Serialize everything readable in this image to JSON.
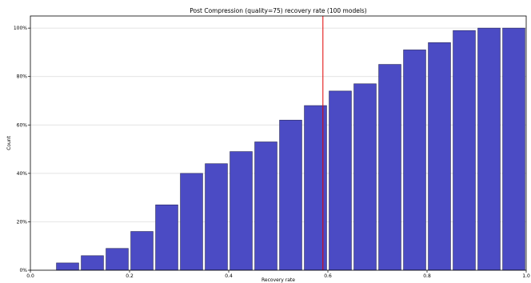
{
  "chart_data": {
    "type": "bar",
    "title": "Post Compression (quality=75) recovery rate (100 models)",
    "xlabel": "Recovery rate",
    "ylabel": "Count",
    "xlim": [
      0.0,
      1.0
    ],
    "ylim": [
      0,
      105
    ],
    "x_ticks": [
      0.0,
      0.2,
      0.4,
      0.6,
      0.8,
      1.0
    ],
    "x_tick_labels": [
      "0.0",
      "0.2",
      "0.4",
      "0.6",
      "0.8",
      "1.0"
    ],
    "y_ticks": [
      0,
      20,
      40,
      60,
      80,
      100
    ],
    "y_tick_labels": [
      "0%",
      "20%",
      "40%",
      "60%",
      "80%",
      "100%"
    ],
    "grid": "horizontal",
    "bar_width": 0.045,
    "bins": [
      {
        "x": 0.075,
        "value": 3
      },
      {
        "x": 0.125,
        "value": 6
      },
      {
        "x": 0.175,
        "value": 9
      },
      {
        "x": 0.225,
        "value": 16
      },
      {
        "x": 0.275,
        "value": 27
      },
      {
        "x": 0.325,
        "value": 40
      },
      {
        "x": 0.375,
        "value": 44
      },
      {
        "x": 0.425,
        "value": 49
      },
      {
        "x": 0.475,
        "value": 53
      },
      {
        "x": 0.525,
        "value": 62
      },
      {
        "x": 0.575,
        "value": 68
      },
      {
        "x": 0.625,
        "value": 74
      },
      {
        "x": 0.675,
        "value": 77
      },
      {
        "x": 0.725,
        "value": 85
      },
      {
        "x": 0.775,
        "value": 91
      },
      {
        "x": 0.825,
        "value": 94
      },
      {
        "x": 0.875,
        "value": 99
      },
      {
        "x": 0.925,
        "value": 100
      },
      {
        "x": 0.975,
        "value": 100
      }
    ],
    "reference_line": {
      "x": 0.59,
      "color": "#e00000"
    },
    "colors": {
      "bar_fill": "#4b4bc4",
      "bar_edge": "#2a2a5a",
      "grid": "#d9d9d9"
    }
  }
}
